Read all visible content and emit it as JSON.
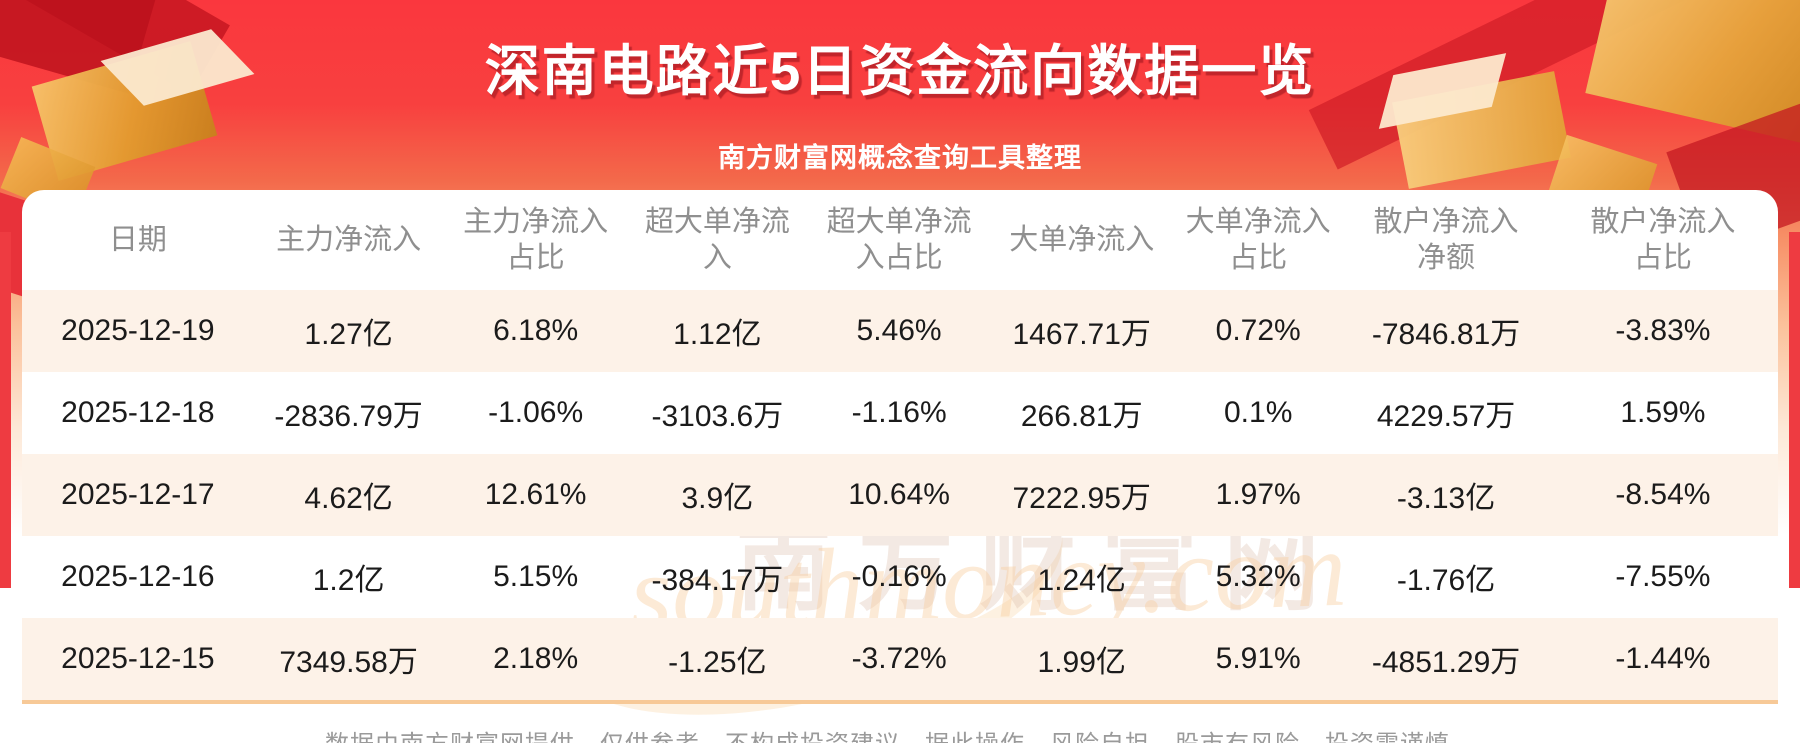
{
  "page": {
    "title": "深南电路近5日资金流向数据一览",
    "subtitle": "南方财富网概念查询工具整理",
    "footer": "数据由南方财富网提供，仅供参考，不构成投资建议，据此操作，风险自担。股市有风险，投资需谨慎。",
    "watermark_cn": "南方财富网",
    "watermark_en": "southmoney.com"
  },
  "colors": {
    "background_red": "#fa373e",
    "background_orange": "#f79067",
    "title_text": "#ffffff",
    "title_shadow": "#8a0e18",
    "row_alt_cream": "#fdf2e8",
    "header_text_gray": "#8f8f8f",
    "body_text": "#1b1b1b",
    "divider_orange": "#f7c997",
    "footer_text_gray": "#9a9a9a",
    "gold_decoration": "#e6a53c"
  },
  "chart_data": {
    "type": "table",
    "title": "深南电路近5日资金流向数据一览",
    "columns": [
      "日期",
      "主力净流入",
      "主力净流入占比",
      "超大单净流入",
      "超大单净流入占比",
      "大单净流入",
      "大单净流入占比",
      "散户净流入净额",
      "散户净流入占比"
    ],
    "column_labels": [
      "日期",
      "主力净流入",
      "主力净流入\n占比",
      "超大单净流\n入",
      "超大单净流\n入占比",
      "大单净流入",
      "大单净流入\n占比",
      "散户净流入\n净额",
      "散户净流入\n占比"
    ],
    "rows": [
      [
        "2025-12-19",
        "1.27亿",
        "6.18%",
        "1.12亿",
        "5.46%",
        "1467.71万",
        "0.72%",
        "-7846.81万",
        "-3.83%"
      ],
      [
        "2025-12-18",
        "-2836.79万",
        "-1.06%",
        "-3103.6万",
        "-1.16%",
        "266.81万",
        "0.1%",
        "4229.57万",
        "1.59%"
      ],
      [
        "2025-12-17",
        "4.62亿",
        "12.61%",
        "3.9亿",
        "10.64%",
        "7222.95万",
        "1.97%",
        "-3.13亿",
        "-8.54%"
      ],
      [
        "2025-12-16",
        "1.2亿",
        "5.15%",
        "-384.17万",
        "-0.16%",
        "1.24亿",
        "5.32%",
        "-1.76亿",
        "-7.55%"
      ],
      [
        "2025-12-15",
        "7349.58万",
        "2.18%",
        "-1.25亿",
        "-3.72%",
        "1.99亿",
        "5.91%",
        "-4851.29万",
        "-1.44%"
      ]
    ],
    "layout": {
      "alternating_row_shading": true,
      "first_shaded_row_index": 0,
      "grid": false,
      "legend_position": "none"
    }
  }
}
